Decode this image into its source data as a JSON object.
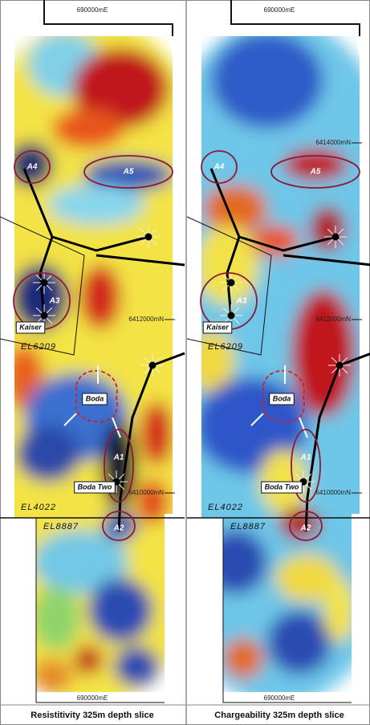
{
  "panels": [
    {
      "easting_top": "690000mE",
      "easting_bottom": "690000mE",
      "northings": [
        "6412000mN",
        "6410000mN"
      ],
      "anomalies": [
        "A4",
        "A5",
        "A3",
        "A1",
        "A2"
      ],
      "prospects": [
        "Kaiser",
        "Boda",
        "Boda Two"
      ],
      "tenements": [
        "EL6209",
        "EL4022",
        "EL8887"
      ],
      "caption": "Resistitivity 325m depth slice"
    },
    {
      "easting_top": "690000mE",
      "easting_bottom": "690000mE",
      "northings": [
        "6414000mN",
        "6412000mN",
        "6410000mN"
      ],
      "anomalies": [
        "A4",
        "A5",
        "A3",
        "A1",
        "A2"
      ],
      "prospects": [
        "Kaiser",
        "Boda",
        "Boda Two"
      ],
      "tenements": [
        "EL6209",
        "EL4022",
        "EL8887"
      ],
      "caption": "Chargeability 325m depth slice"
    }
  ]
}
